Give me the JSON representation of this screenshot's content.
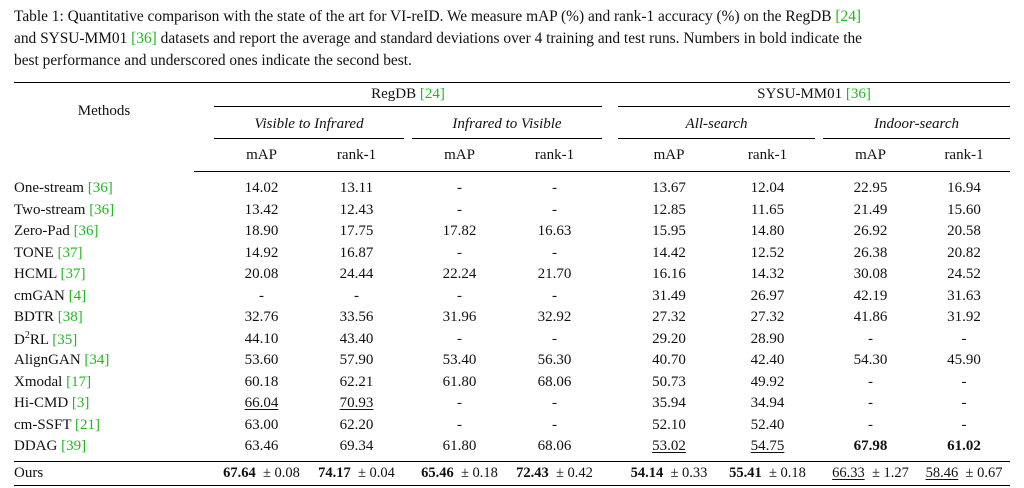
{
  "caption": {
    "line1_pre": "Table 1: Quantitative comparison with the state of the art for VI-reID. We measure mAP (%) and rank-1 accuracy (%) on the RegDB ",
    "line1_cite": "[24]",
    "line2_pre": "and SYSU-MM01 ",
    "line2_cite": "[36]",
    "line2_post": " datasets and report the average and standard deviations over 4 training and test runs. Numbers in bold indicate the",
    "line3": "best performance and underscored ones indicate the second best."
  },
  "header": {
    "methods": "Methods",
    "regdb": "RegDB ",
    "regdb_cite": "[24]",
    "sysu": "SYSU-MM01 ",
    "sysu_cite": "[36]",
    "v2i": "Visible to Infrared",
    "i2v": "Infrared to Visible",
    "all": "All-search",
    "indoor": "Indoor-search",
    "map": "mAP",
    "rank1": "rank-1"
  },
  "rows": [
    {
      "name": "One-stream ",
      "cite": "[36]",
      "sup": "",
      "vals": [
        "14.02",
        "13.11",
        "-",
        "-",
        "13.67",
        "12.04",
        "22.95",
        "16.94"
      ]
    },
    {
      "name": "Two-stream ",
      "cite": "[36]",
      "sup": "",
      "vals": [
        "13.42",
        "12.43",
        "-",
        "-",
        "12.85",
        "11.65",
        "21.49",
        "15.60"
      ]
    },
    {
      "name": "Zero-Pad ",
      "cite": "[36]",
      "sup": "",
      "vals": [
        "18.90",
        "17.75",
        "17.82",
        "16.63",
        "15.95",
        "14.80",
        "26.92",
        "20.58"
      ]
    },
    {
      "name": "TONE ",
      "cite": "[37]",
      "sup": "",
      "vals": [
        "14.92",
        "16.87",
        "-",
        "-",
        "14.42",
        "12.52",
        "26.38",
        "20.82"
      ]
    },
    {
      "name": "HCML ",
      "cite": "[37]",
      "sup": "",
      "vals": [
        "20.08",
        "24.44",
        "22.24",
        "21.70",
        "16.16",
        "14.32",
        "30.08",
        "24.52"
      ]
    },
    {
      "name": "cmGAN ",
      "cite": "[4]",
      "sup": "",
      "vals": [
        "-",
        "-",
        "-",
        "-",
        "31.49",
        "26.97",
        "42.19",
        "31.63"
      ]
    },
    {
      "name": "BDTR ",
      "cite": "[38]",
      "sup": "",
      "vals": [
        "32.76",
        "33.56",
        "31.96",
        "32.92",
        "27.32",
        "27.32",
        "41.86",
        "31.92"
      ]
    },
    {
      "name": "D",
      "cite": "[35]",
      "sup": "2",
      "name2": "RL ",
      "vals": [
        "44.10",
        "43.40",
        "-",
        "-",
        "29.20",
        "28.90",
        "-",
        "-"
      ]
    },
    {
      "name": "AlignGAN ",
      "cite": "[34]",
      "sup": "",
      "vals": [
        "53.60",
        "57.90",
        "53.40",
        "56.30",
        "40.70",
        "42.40",
        "54.30",
        "45.90"
      ]
    },
    {
      "name": "Xmodal ",
      "cite": "[17]",
      "sup": "",
      "vals": [
        "60.18",
        "62.21",
        "61.80",
        "68.06",
        "50.73",
        "49.92",
        "-",
        "-"
      ]
    },
    {
      "name": "Hi-CMD ",
      "cite": "[3]",
      "sup": "",
      "vals": [
        "66.04",
        "70.93",
        "-",
        "-",
        "35.94",
        "34.94",
        "-",
        "-"
      ],
      "underline": [
        0,
        1
      ]
    },
    {
      "name": "cm-SSFT ",
      "cite": "[21]",
      "sup": "",
      "vals": [
        "63.00",
        "62.20",
        "-",
        "-",
        "52.10",
        "52.40",
        "-",
        "-"
      ]
    },
    {
      "name": "DDAG ",
      "cite": "[39]",
      "sup": "",
      "vals": [
        "63.46",
        "69.34",
        "61.80",
        "68.06",
        "53.02",
        "54.75",
        "67.98",
        "61.02"
      ],
      "underline": [
        4,
        5
      ],
      "bold": [
        6,
        7
      ]
    }
  ],
  "ours": {
    "name": "Ours",
    "vals": [
      "67.64",
      "74.17",
      "65.46",
      "72.43",
      "54.14",
      "55.41",
      "66.33",
      "58.46"
    ],
    "stds": [
      "0.08",
      "0.04",
      "0.18",
      "0.42",
      "0.33",
      "0.18",
      "1.27",
      "0.67"
    ],
    "pm": "±",
    "bold": [
      0,
      1,
      2,
      3,
      4,
      5
    ],
    "underline": [
      6,
      7
    ]
  }
}
